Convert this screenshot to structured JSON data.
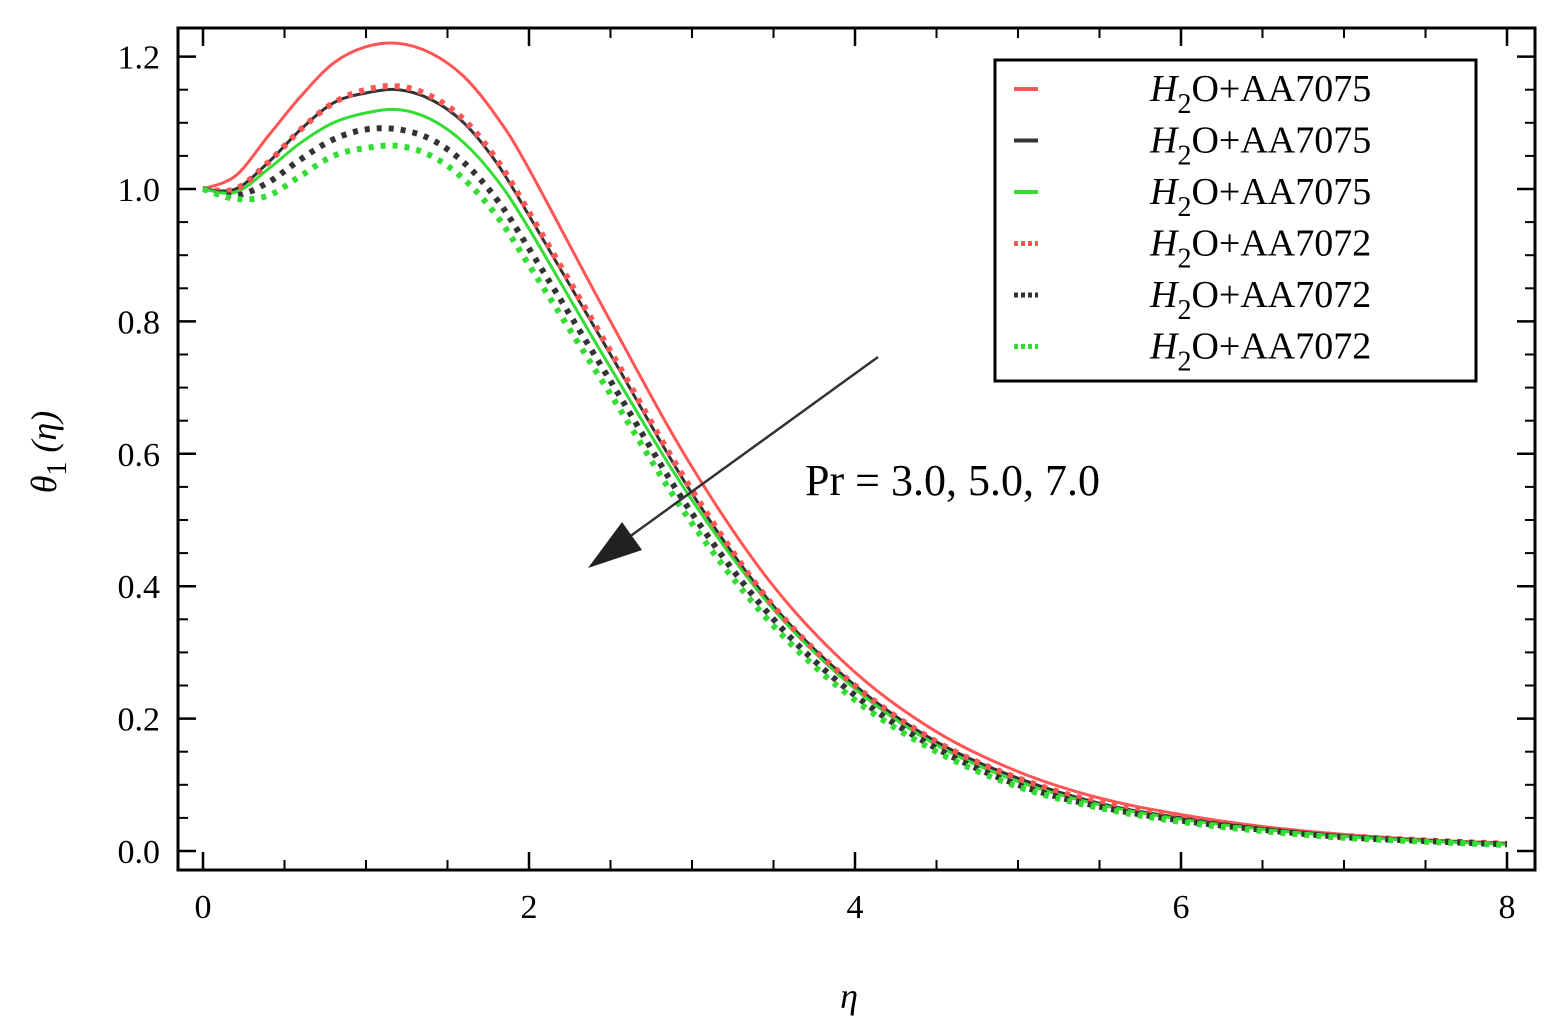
{
  "chart_data": {
    "type": "line",
    "xlabel": "η",
    "ylabel": "θ",
    "ylabel_sub": "1",
    "ylabel_suffix": " (η)",
    "xlim": [
      0,
      8
    ],
    "ylim": [
      0,
      1.25
    ],
    "x_ticks": [
      0,
      2,
      4,
      6,
      8
    ],
    "x_tick_labels": [
      "0",
      "2",
      "4",
      "6",
      "8"
    ],
    "y_ticks": [
      0,
      0.2,
      0.4,
      0.6,
      0.8,
      1.0,
      1.2
    ],
    "y_tick_labels": [
      "0.0",
      "0.2",
      "0.4",
      "0.6",
      "0.8",
      "1.0",
      "1.2"
    ],
    "grid": false,
    "legend_position": "top-right",
    "annotation": "Pr = 3.0, 5.0, 7.0",
    "x": [
      0,
      0.2,
      0.4,
      0.6,
      0.8,
      1.0,
      1.2,
      1.4,
      1.6,
      1.8,
      2.0,
      2.5,
      3.0,
      3.5,
      4.0,
      4.5,
      5.0,
      5.5,
      6.0,
      6.5,
      7.0,
      7.5,
      8.0
    ],
    "series": [
      {
        "name": "H2O+AA7075",
        "name_parts": [
          "H",
          "2",
          "O+AA7075"
        ],
        "color": "#ff5555",
        "style": "solid",
        "values": [
          1.0,
          1.02,
          1.08,
          1.14,
          1.19,
          1.215,
          1.22,
          1.205,
          1.17,
          1.11,
          1.03,
          0.8,
          0.58,
          0.4,
          0.27,
          0.18,
          0.12,
          0.08,
          0.055,
          0.037,
          0.025,
          0.017,
          0.012
        ]
      },
      {
        "name": "H2O+AA7075",
        "name_parts": [
          "H",
          "2",
          "O+AA7075"
        ],
        "color": "#333333",
        "style": "solid",
        "values": [
          1.0,
          1.0,
          1.04,
          1.09,
          1.13,
          1.145,
          1.15,
          1.135,
          1.1,
          1.04,
          0.96,
          0.75,
          0.54,
          0.37,
          0.25,
          0.165,
          0.11,
          0.072,
          0.05,
          0.034,
          0.023,
          0.016,
          0.011
        ]
      },
      {
        "name": "H2O+AA7075",
        "name_parts": [
          "H",
          "2",
          "O+AA7075"
        ],
        "color": "#33dd33",
        "style": "solid",
        "values": [
          1.0,
          0.995,
          1.03,
          1.07,
          1.1,
          1.115,
          1.12,
          1.105,
          1.07,
          1.015,
          0.94,
          0.73,
          0.53,
          0.365,
          0.245,
          0.16,
          0.105,
          0.07,
          0.048,
          0.033,
          0.022,
          0.015,
          0.01
        ]
      },
      {
        "name": "H2O+AA7072",
        "name_parts": [
          "H",
          "2",
          "O+AA7072"
        ],
        "color": "#ff5555",
        "style": "dashed",
        "values": [
          1.0,
          1.0,
          1.04,
          1.09,
          1.13,
          1.15,
          1.155,
          1.14,
          1.105,
          1.045,
          0.965,
          0.755,
          0.545,
          0.37,
          0.25,
          0.165,
          0.11,
          0.073,
          0.05,
          0.034,
          0.023,
          0.016,
          0.011
        ]
      },
      {
        "name": "H2O+AA7072",
        "name_parts": [
          "H",
          "2",
          "O+AA7072"
        ],
        "color": "#333333",
        "style": "dashed",
        "values": [
          1.0,
          0.99,
          1.01,
          1.045,
          1.075,
          1.09,
          1.09,
          1.075,
          1.04,
          0.985,
          0.91,
          0.71,
          0.51,
          0.35,
          0.235,
          0.155,
          0.1,
          0.067,
          0.046,
          0.032,
          0.021,
          0.015,
          0.01
        ]
      },
      {
        "name": "H2O+AA7072",
        "name_parts": [
          "H",
          "2",
          "O+AA7072"
        ],
        "color": "#33dd33",
        "style": "dashed",
        "values": [
          1.0,
          0.985,
          0.99,
          1.02,
          1.05,
          1.062,
          1.065,
          1.05,
          1.015,
          0.96,
          0.885,
          0.69,
          0.495,
          0.34,
          0.228,
          0.15,
          0.097,
          0.065,
          0.044,
          0.03,
          0.02,
          0.014,
          0.009
        ]
      }
    ]
  }
}
